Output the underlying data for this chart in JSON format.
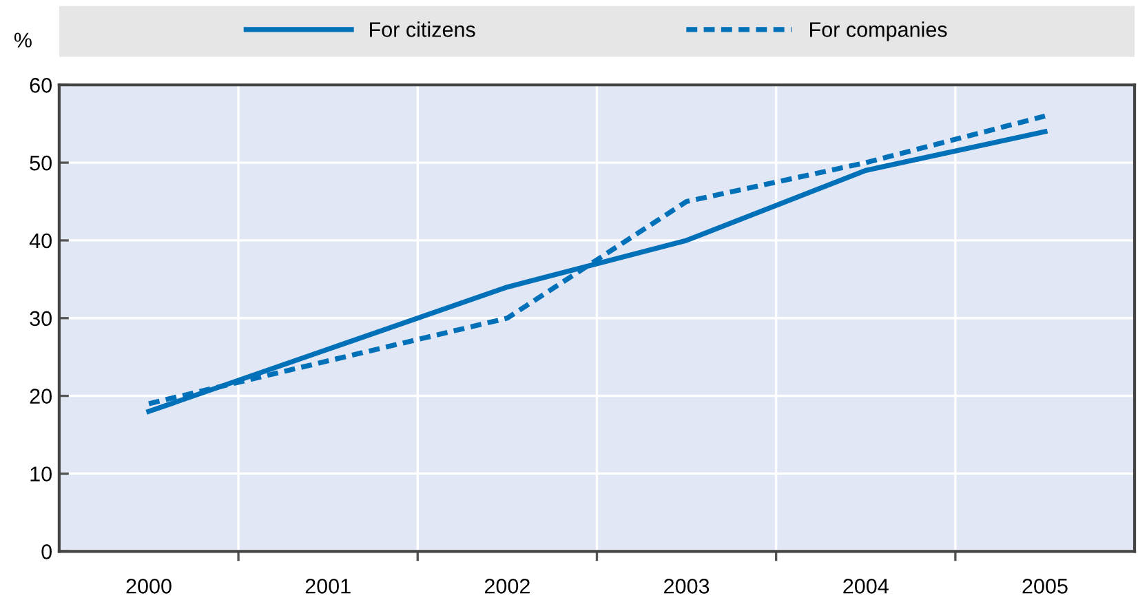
{
  "chart_data": {
    "type": "line",
    "ylabel": "%",
    "categories": [
      "2000",
      "2001",
      "2002",
      "2003",
      "2004",
      "2005"
    ],
    "series": [
      {
        "name": "For citizens",
        "color": "#0070b8",
        "line_style": "solid",
        "values": [
          18,
          26,
          34,
          40,
          49,
          54
        ]
      },
      {
        "name": "For companies",
        "color": "#0070b8",
        "line_style": "dashed",
        "values": [
          19,
          24.5,
          30,
          45,
          50,
          56
        ]
      }
    ],
    "ylim": [
      0,
      60
    ],
    "yticks": [
      0,
      10,
      20,
      30,
      40,
      50,
      60
    ],
    "grid": true,
    "legend": "top",
    "marker": "none"
  }
}
